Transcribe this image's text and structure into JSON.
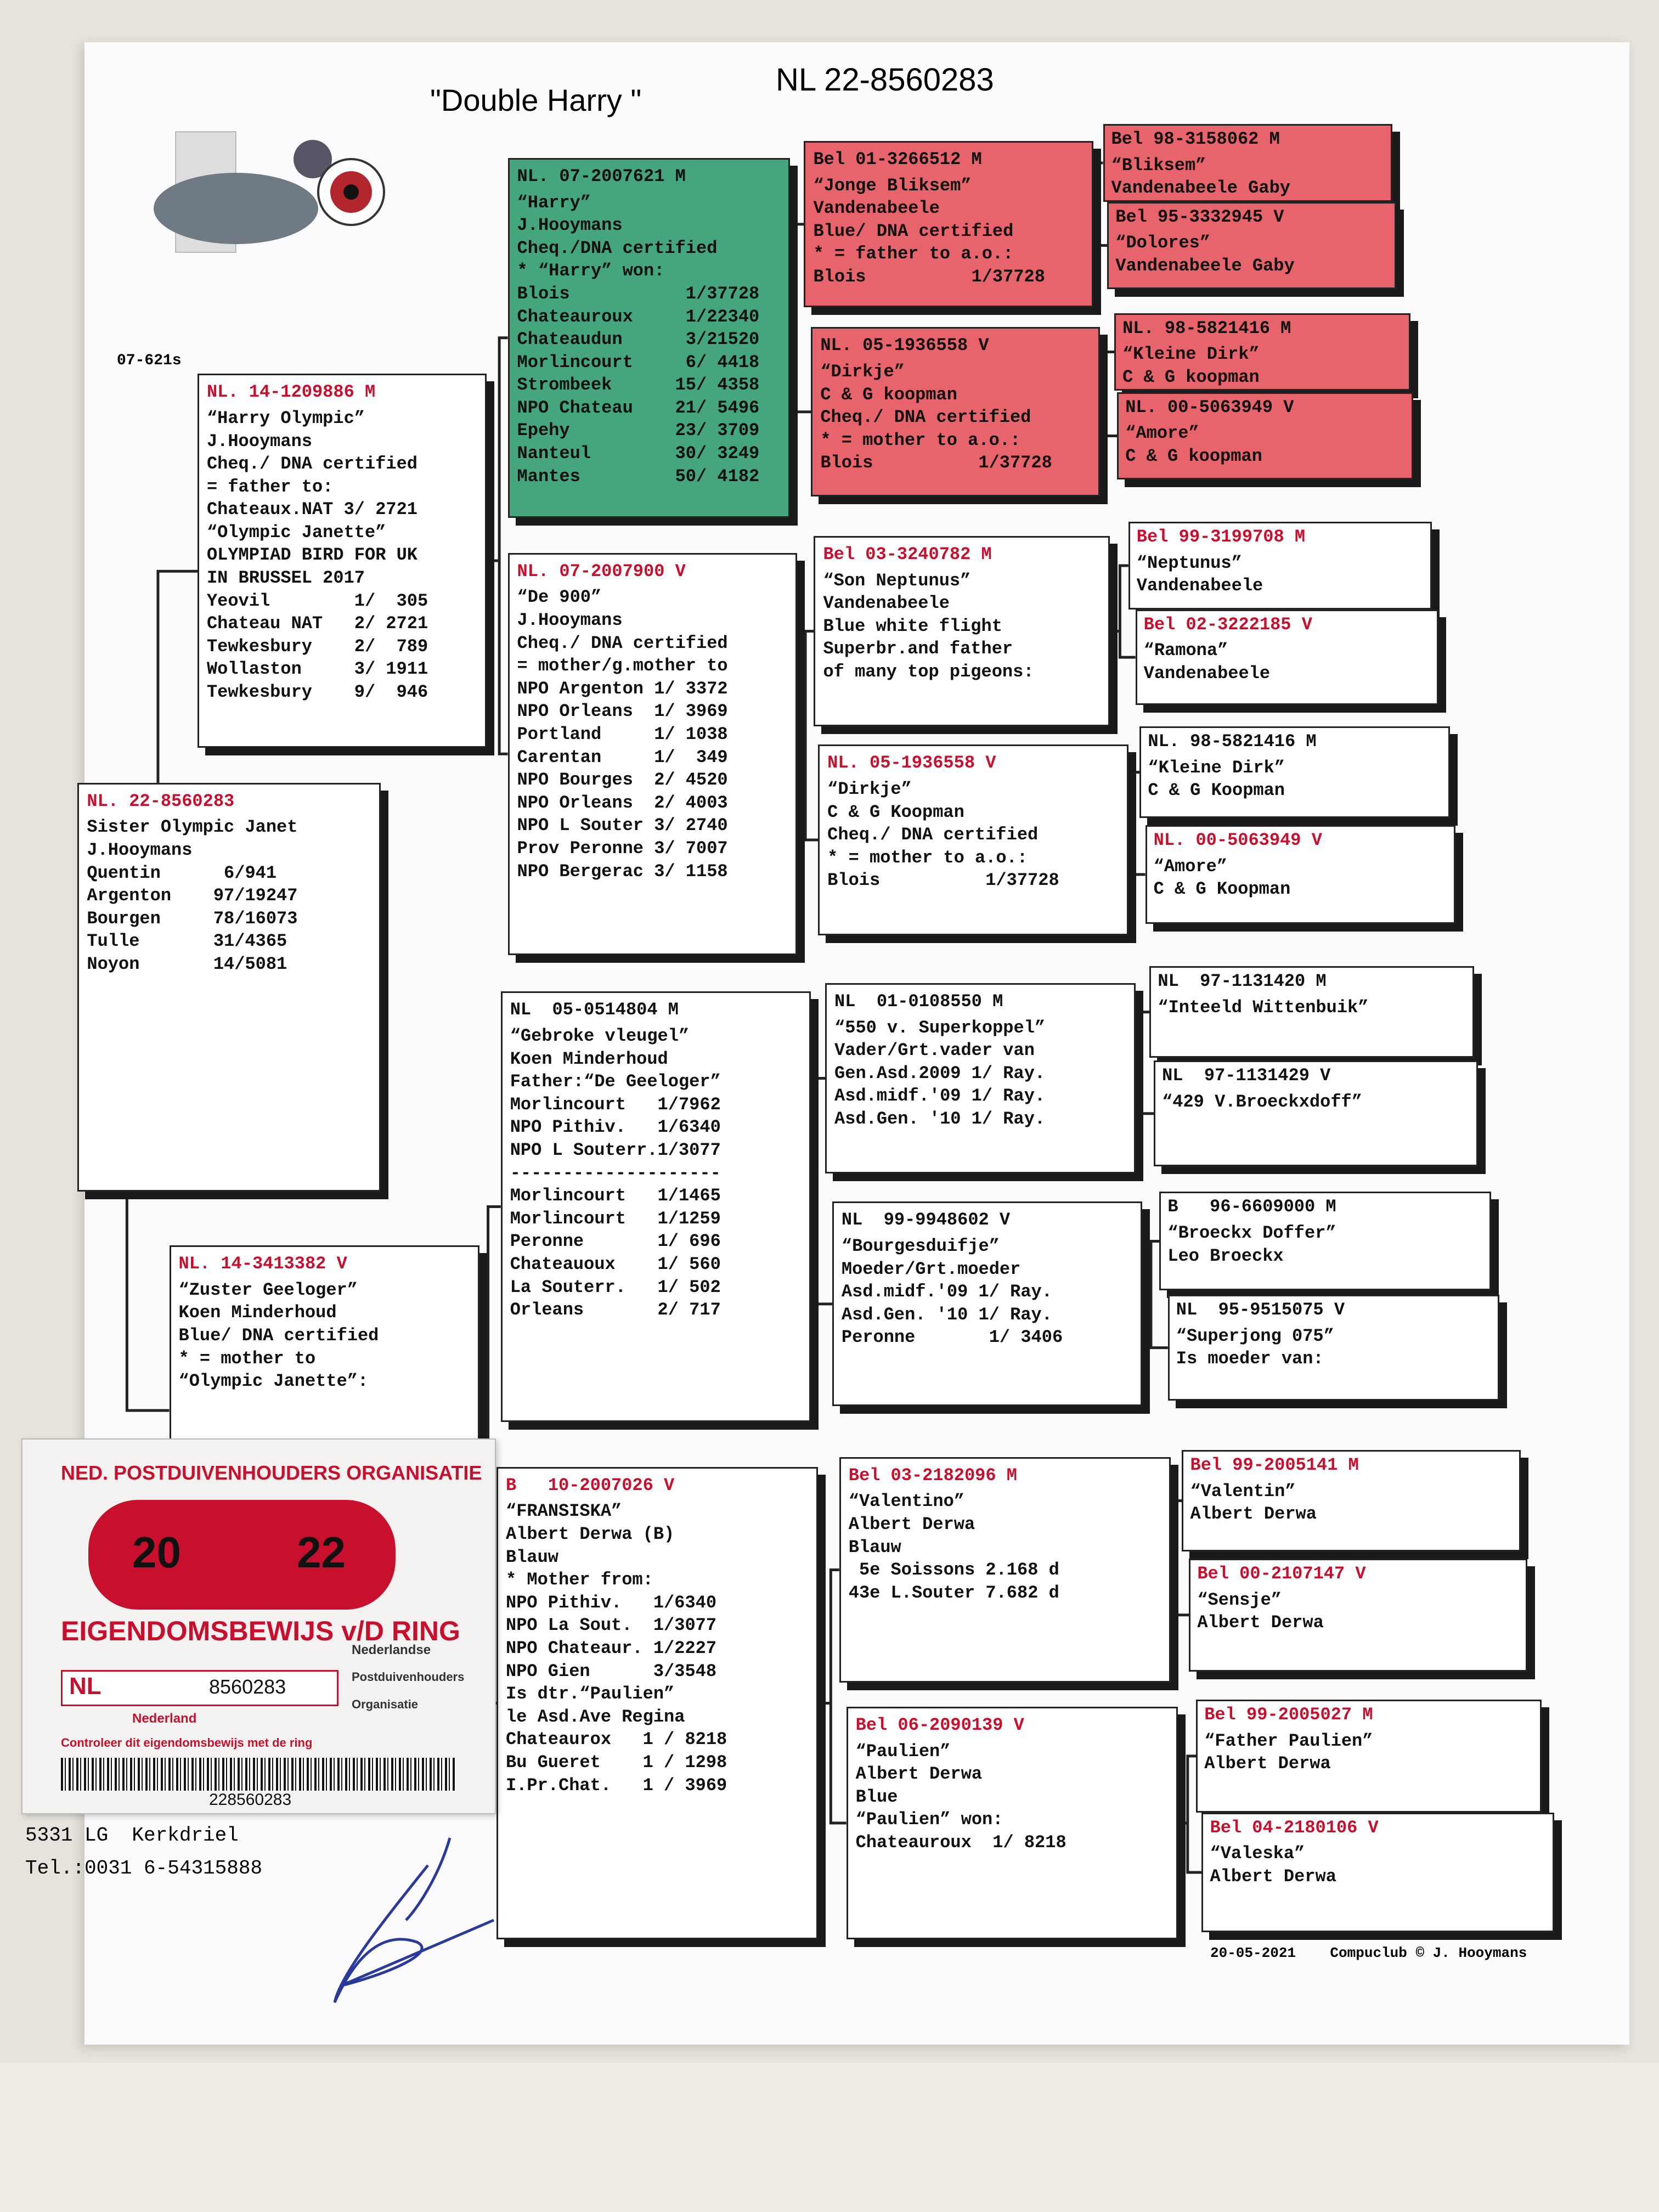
{
  "header": {
    "title": "\"Double Harry \"",
    "ring": "NL 22-8560283",
    "code": "07-621s"
  },
  "pedigree": [
    {
      "header": "NL. 22-8560283",
      "lines": [
        "Sister Olympic Janet",
        "J.Hooymans",
        "Quentin      6/941",
        "Argenton    97/19247",
        "Bourgen     78/16073",
        "Tulle       31/4365",
        "Noyon       14/5081"
      ]
    },
    {
      "header": "NL. 14-1209886 M",
      "lines": [
        "“Harry Olympic”",
        "J.Hooymans",
        "Cheq./ DNA certified",
        "= father to:",
        "Chateaux.NAT 3/ 2721",
        "“Olympic Janette”",
        "OLYMPIAD BIRD FOR UK",
        "IN BRUSSEL 2017",
        "Yeovil        1/  305",
        "Chateau NAT   2/ 2721",
        "Tewkesbury    2/  789",
        "Wollaston     3/ 1911",
        "Tewkesbury    9/  946"
      ]
    },
    {
      "header": "NL. 14-3413382 V",
      "lines": [
        "“Zuster Geeloger”",
        "Koen Minderhoud",
        "Blue/ DNA certified",
        "* = mother to",
        "“Olympic Janette”:"
      ]
    },
    {
      "header": "NL. 07-2007621 M",
      "lines": [
        "“Harry”",
        "J.Hooymans",
        "Cheq./DNA certified",
        "* “Harry” won:",
        "Blois           1/37728",
        "Chateauroux     1/22340",
        "Chateaudun      3/21520",
        "Morlincourt     6/ 4418",
        "Strombeek      15/ 4358",
        "NPO Chateau    21/ 5496",
        "Epehy          23/ 3709",
        "Nanteul        30/ 3249",
        "Mantes         50/ 4182"
      ]
    },
    {
      "header": "NL. 07-2007900 V",
      "lines": [
        "“De 900”",
        "J.Hooymans",
        "Cheq./ DNA certified",
        "= mother/g.mother to",
        "NPO Argenton 1/ 3372",
        "NPO Orleans  1/ 3969",
        "Portland     1/ 1038",
        "Carentan     1/  349",
        "NPO Bourges  2/ 4520",
        "NPO Orleans  2/ 4003",
        "NPO L Souter 3/ 2740",
        "Prov Peronne 3/ 7007",
        "NPO Bergerac 3/ 1158"
      ]
    },
    {
      "header": "NL  05-0514804 M",
      "lines": [
        "“Gebroke vleugel”",
        "Koen Minderhoud",
        "Father:“De Geeloger”",
        "Morlincourt   1/7962",
        "NPO Pithiv.   1/6340",
        "NPO L Souterr.1/3077",
        "--------------------",
        "Morlincourt   1/1465",
        "Morlincourt   1/1259",
        "Peronne       1/ 696",
        "Chateauoux    1/ 560",
        "La Souterr.   1/ 502",
        "Orleans       2/ 717"
      ]
    },
    {
      "header": "B   10-2007026 V",
      "lines": [
        "“FRANSISKA”",
        "Albert Derwa (B)",
        "Blauw",
        "* Mother from:",
        "NPO Pithiv.   1/6340",
        "NPO La Sout.  1/3077",
        "NPO Chateaur. 1/2227",
        "NPO Gien      3/3548",
        "Is dtr.“Paulien”",
        "le Asd.Ave Regina",
        "Chateaurox   1 / 8218",
        "Bu Gueret    1 / 1298",
        "I.Pr.Chat.   1 / 3969"
      ]
    },
    {
      "header": "Bel 01-3266512 M",
      "lines": [
        "“Jonge Bliksem”",
        "Vandenabeele",
        "Blue/ DNA certified",
        "* = father to a.o.:",
        "Blois          1/37728"
      ]
    },
    {
      "header": "NL. 05-1936558 V",
      "lines": [
        "“Dirkje”",
        "C & G koopman",
        "Cheq./ DNA certified",
        "* = mother to a.o.:",
        "Blois          1/37728"
      ]
    },
    {
      "header": "Bel 03-3240782 M",
      "lines": [
        "“Son Neptunus”",
        "Vandenabeele",
        "Blue white flight",
        "Superbr.and father",
        "of many top pigeons:"
      ]
    },
    {
      "header": "NL. 05-1936558 V",
      "lines": [
        "“Dirkje”",
        "C & G Koopman",
        "Cheq./ DNA certified",
        "* = mother to a.o.:",
        "Blois          1/37728"
      ]
    },
    {
      "header": "NL  01-0108550 M",
      "lines": [
        "“550 v. Superkoppel”",
        "Vader/Grt.vader van",
        "Gen.Asd.2009 1/ Ray.",
        "Asd.midf.'09 1/ Ray.",
        "Asd.Gen. '10 1/ Ray."
      ]
    },
    {
      "header": "NL  99-9948602 V",
      "lines": [
        "“Bourgesduifje”",
        "Moeder/Grt.moeder",
        "Asd.midf.'09 1/ Ray.",
        "Asd.Gen. '10 1/ Ray.",
        "Peronne       1/ 3406"
      ]
    },
    {
      "header": "Bel 03-2182096 M",
      "lines": [
        "“Valentino”",
        "Albert Derwa",
        "Blauw",
        " 5e Soissons 2.168 d",
        "43e L.Souter 7.682 d"
      ]
    },
    {
      "header": "Bel 06-2090139 V",
      "lines": [
        "“Paulien”",
        "Albert Derwa",
        "Blue",
        "“Paulien” won:",
        "Chateauroux  1/ 8218"
      ]
    },
    {
      "header": "Bel 98-3158062 M",
      "lines": [
        "“Bliksem”",
        "Vandenabeele Gaby"
      ]
    },
    {
      "header": "Bel 95-3332945 V",
      "lines": [
        "“Dolores”",
        "Vandenabeele Gaby"
      ]
    },
    {
      "header": "NL. 98-5821416 M",
      "lines": [
        "“Kleine Dirk”",
        "C & G koopman"
      ]
    },
    {
      "header": "NL. 00-5063949 V",
      "lines": [
        "“Amore”",
        "C & G koopman"
      ]
    },
    {
      "header": "Bel 99-3199708 M",
      "lines": [
        "“Neptunus”",
        "Vandenabeele"
      ]
    },
    {
      "header": "Bel 02-3222185 V",
      "lines": [
        "“Ramona”",
        "Vandenabeele"
      ]
    },
    {
      "header": "NL. 98-5821416 M",
      "lines": [
        "“Kleine Dirk”",
        "C & G Koopman"
      ]
    },
    {
      "header": "NL. 00-5063949 V",
      "lines": [
        "“Amore”",
        "C & G Koopman"
      ]
    },
    {
      "header": "NL  97-1131420 M",
      "lines": [
        "“Inteeld Wittenbuik”"
      ]
    },
    {
      "header": "NL  97-1131429 V",
      "lines": [
        "“429 V.Broeckxdoff”"
      ]
    },
    {
      "header": "B   96-6609000 M",
      "lines": [
        "“Broeckx Doffer”",
        "Leo Broeckx"
      ]
    },
    {
      "header": "NL  95-9515075 V",
      "lines": [
        "“Superjong 075”",
        "Is moeder van:"
      ]
    },
    {
      "header": "Bel 99-2005141 M",
      "lines": [
        "“Valentin”",
        "Albert Derwa"
      ]
    },
    {
      "header": "Bel 00-2107147 V",
      "lines": [
        "“Sensje”",
        "Albert Derwa"
      ]
    },
    {
      "header": "Bel 99-2005027 M",
      "lines": [
        "“Father Paulien”",
        "Albert Derwa"
      ]
    },
    {
      "header": "Bel 04-2180106 V",
      "lines": [
        "“Valeska”",
        "Albert Derwa"
      ]
    }
  ],
  "owner": {
    "address": "5331 LG  Kerkdriel",
    "phone": "Tel.:0031 6-54315888"
  },
  "footer": "20-05-2021    Compuclub © J. Hooymans",
  "card": {
    "organisation": "NED. POSTDUIVENHOUDERS ORGANISATIE",
    "year_left": "20",
    "year_right": "22",
    "title": "EIGENDOMSBEWIJS v/D RING",
    "country": "NL",
    "ring_number": "8560283",
    "region": "Nederland",
    "org_words": [
      "Nederlandse",
      "Postduivenhouders",
      "Organisatie"
    ],
    "notice": "Controleer dit eigendomsbewijs met de ring",
    "barcode_number": "228560283"
  }
}
